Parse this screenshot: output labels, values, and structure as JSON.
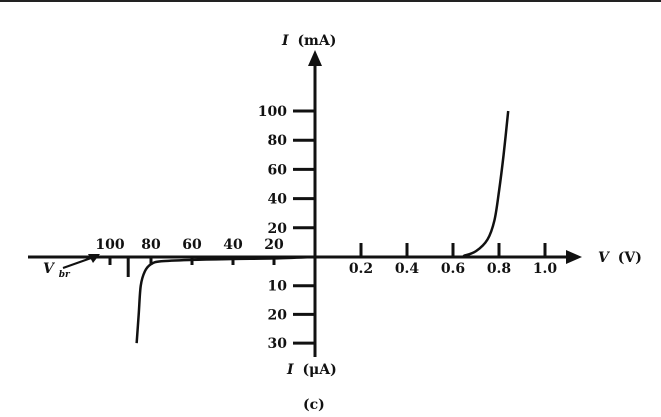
{
  "chart_data": {
    "type": "line",
    "caption": "(c)",
    "y_axis_upper_title_symbol": "I",
    "y_axis_upper_title_unit": "(mA)",
    "y_axis_lower_title_symbol": "I",
    "y_axis_lower_title_unit": "(μA)",
    "x_axis_right_title_symbol": "V",
    "x_axis_right_title_unit": "(V)",
    "breakdown_label": "V",
    "breakdown_label_subscript": "br",
    "forward_x_ticks": [
      "0.2",
      "0.4",
      "0.6",
      "0.8",
      "1.0"
    ],
    "reverse_x_ticks": [
      "100",
      "80",
      "60",
      "40",
      "20"
    ],
    "forward_y_ticks": [
      "20",
      "40",
      "60",
      "80",
      "100"
    ],
    "reverse_y_ticks": [
      "10",
      "20",
      "30"
    ],
    "forward_region": {
      "x_unit": "V",
      "y_unit": "mA",
      "x_range": [
        0,
        1.0
      ],
      "y_range": [
        0,
        100
      ],
      "points": [
        {
          "x": 0.0,
          "y": 0
        },
        {
          "x": 0.6,
          "y": 0
        },
        {
          "x": 0.65,
          "y": 1
        },
        {
          "x": 0.7,
          "y": 4
        },
        {
          "x": 0.75,
          "y": 12
        },
        {
          "x": 0.78,
          "y": 25
        },
        {
          "x": 0.8,
          "y": 45
        },
        {
          "x": 0.82,
          "y": 70
        },
        {
          "x": 0.84,
          "y": 100
        }
      ]
    },
    "reverse_region": {
      "x_unit": "V",
      "y_unit": "μA",
      "x_range": [
        -100,
        0
      ],
      "y_range": [
        -30,
        0
      ],
      "points": [
        {
          "x": 0,
          "y": 0
        },
        {
          "x": -20,
          "y": -0.5
        },
        {
          "x": -40,
          "y": -0.7
        },
        {
          "x": -60,
          "y": -1
        },
        {
          "x": -75,
          "y": -1.5
        },
        {
          "x": -80,
          "y": -2.5
        },
        {
          "x": -83,
          "y": -5
        },
        {
          "x": -85,
          "y": -10
        },
        {
          "x": -86,
          "y": -20
        },
        {
          "x": -87,
          "y": -30
        }
      ]
    }
  }
}
